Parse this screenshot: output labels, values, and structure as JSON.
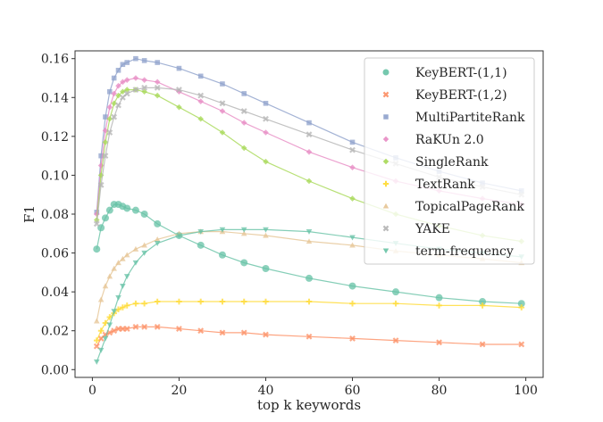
{
  "chart_data": {
    "type": "line",
    "xlabel": "top k keywords",
    "ylabel": "F1",
    "xlim": [
      -4,
      104
    ],
    "ylim": [
      -0.004,
      0.164
    ],
    "xticks": [
      0,
      20,
      40,
      60,
      80,
      100
    ],
    "yticks": [
      0.0,
      0.02,
      0.04,
      0.06,
      0.08,
      0.1,
      0.12,
      0.14,
      0.16
    ],
    "ytick_labels": [
      "0.00",
      "0.02",
      "0.04",
      "0.06",
      "0.08",
      "0.10",
      "0.12",
      "0.14",
      "0.16"
    ],
    "grid": false,
    "legend_position": "upper right",
    "x": [
      1,
      2,
      3,
      4,
      5,
      6,
      7,
      8,
      10,
      12,
      15,
      20,
      25,
      30,
      35,
      40,
      50,
      60,
      70,
      80,
      90,
      99
    ],
    "series": [
      {
        "name": "KeyBERT-(1,1)",
        "color": "#66c2a5",
        "marker": "circle",
        "values": [
          0.062,
          0.073,
          0.078,
          0.082,
          0.085,
          0.085,
          0.084,
          0.083,
          0.082,
          0.08,
          0.075,
          0.069,
          0.064,
          0.059,
          0.055,
          0.052,
          0.047,
          0.043,
          0.04,
          0.037,
          0.035,
          0.034
        ]
      },
      {
        "name": "KeyBERT-(1,2)",
        "color": "#fc8d62",
        "marker": "x",
        "values": [
          0.012,
          0.016,
          0.018,
          0.019,
          0.02,
          0.021,
          0.021,
          0.021,
          0.022,
          0.022,
          0.022,
          0.021,
          0.02,
          0.019,
          0.019,
          0.018,
          0.017,
          0.016,
          0.015,
          0.014,
          0.013,
          0.013
        ]
      },
      {
        "name": "MultiPartiteRank",
        "color": "#8da0cb",
        "marker": "square",
        "values": [
          0.081,
          0.11,
          0.13,
          0.143,
          0.15,
          0.154,
          0.157,
          0.158,
          0.16,
          0.159,
          0.158,
          0.155,
          0.151,
          0.147,
          0.142,
          0.137,
          0.127,
          0.117,
          0.109,
          0.102,
          0.096,
          0.092
        ]
      },
      {
        "name": "RaKUn 2.0",
        "color": "#e78ac3",
        "marker": "diamond",
        "values": [
          0.08,
          0.105,
          0.123,
          0.135,
          0.142,
          0.146,
          0.148,
          0.149,
          0.15,
          0.149,
          0.148,
          0.143,
          0.138,
          0.133,
          0.127,
          0.122,
          0.112,
          0.104,
          0.097,
          0.092,
          0.088,
          0.085
        ]
      },
      {
        "name": "SingleRank",
        "color": "#a6d854",
        "marker": "diamond",
        "values": [
          0.077,
          0.1,
          0.117,
          0.129,
          0.137,
          0.141,
          0.143,
          0.144,
          0.144,
          0.143,
          0.141,
          0.135,
          0.129,
          0.122,
          0.114,
          0.107,
          0.097,
          0.088,
          0.08,
          0.074,
          0.069,
          0.066
        ]
      },
      {
        "name": "TextRank",
        "color": "#ffd92f",
        "marker": "plus",
        "values": [
          0.015,
          0.02,
          0.024,
          0.027,
          0.029,
          0.031,
          0.032,
          0.033,
          0.034,
          0.034,
          0.035,
          0.035,
          0.035,
          0.035,
          0.035,
          0.035,
          0.035,
          0.034,
          0.034,
          0.033,
          0.033,
          0.032
        ]
      },
      {
        "name": "TopicalPageRank",
        "color": "#e5c494",
        "marker": "triangle-up",
        "values": [
          0.025,
          0.036,
          0.043,
          0.048,
          0.052,
          0.055,
          0.057,
          0.059,
          0.062,
          0.064,
          0.067,
          0.07,
          0.071,
          0.071,
          0.07,
          0.069,
          0.066,
          0.064,
          0.061,
          0.059,
          0.057,
          0.055
        ]
      },
      {
        "name": "YAKE",
        "color": "#b3b3b3",
        "marker": "x",
        "values": [
          0.075,
          0.095,
          0.11,
          0.122,
          0.13,
          0.136,
          0.14,
          0.142,
          0.144,
          0.145,
          0.145,
          0.144,
          0.141,
          0.137,
          0.133,
          0.129,
          0.121,
          0.113,
          0.106,
          0.099,
          0.094,
          0.09
        ]
      },
      {
        "name": "term-frequency",
        "color": "#66c2a5",
        "marker": "triangle-down",
        "values": [
          0.004,
          0.01,
          0.016,
          0.023,
          0.03,
          0.037,
          0.043,
          0.048,
          0.055,
          0.06,
          0.065,
          0.069,
          0.071,
          0.072,
          0.072,
          0.072,
          0.071,
          0.068,
          0.065,
          0.062,
          0.06,
          0.058
        ]
      }
    ]
  }
}
